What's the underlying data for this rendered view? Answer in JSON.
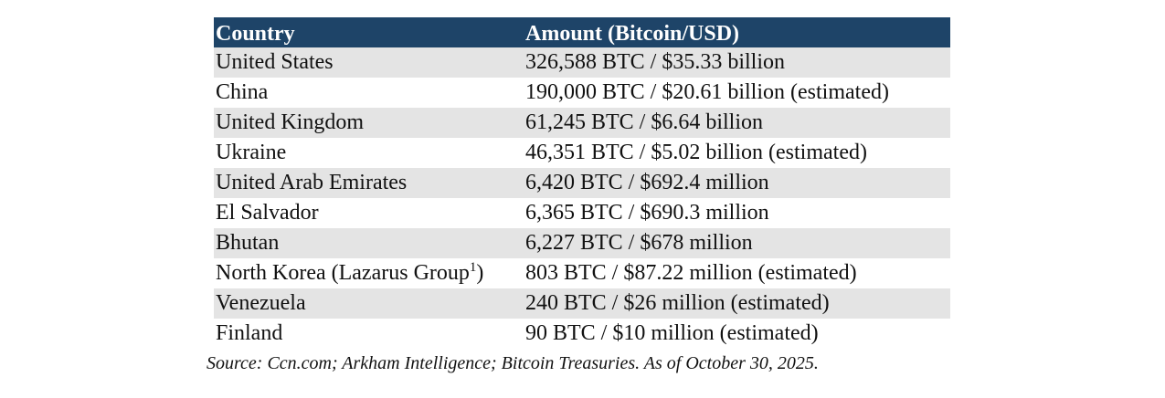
{
  "table": {
    "headers": [
      "Country",
      "Amount (Bitcoin/USD)"
    ],
    "rows": [
      {
        "country": "United States",
        "amount": "326,588 BTC / $35.33 billion"
      },
      {
        "country": "China",
        "amount": "190,000 BTC / $20.61 billion (estimated)"
      },
      {
        "country": "United Kingdom",
        "amount": "61,245 BTC / $6.64 billion"
      },
      {
        "country": "Ukraine",
        "amount": "46,351 BTC / $5.02 billion (estimated)"
      },
      {
        "country": "United Arab Emirates",
        "amount": "6,420 BTC / $692.4 million"
      },
      {
        "country": "El Salvador",
        "amount": "6,365 BTC / $690.3 million"
      },
      {
        "country": "Bhutan",
        "amount": "6,227 BTC / $678 million"
      },
      {
        "country": "North Korea (Lazarus Group",
        "footnote": "1",
        "country_suffix": ")",
        "amount": "803 BTC / $87.22 million (estimated)"
      },
      {
        "country": "Venezuela",
        "amount": "240 BTC / $26 million (estimated)"
      },
      {
        "country": "Finland",
        "amount": "90 BTC / $10 million (estimated)"
      }
    ]
  },
  "source": "Source: Ccn.com; Arkham Intelligence; Bitcoin Treasuries. As of October 30, 2025.",
  "colors": {
    "header_bg": "#1e4468",
    "header_text": "#ffffff",
    "shaded_row": "#e4e4e4"
  }
}
